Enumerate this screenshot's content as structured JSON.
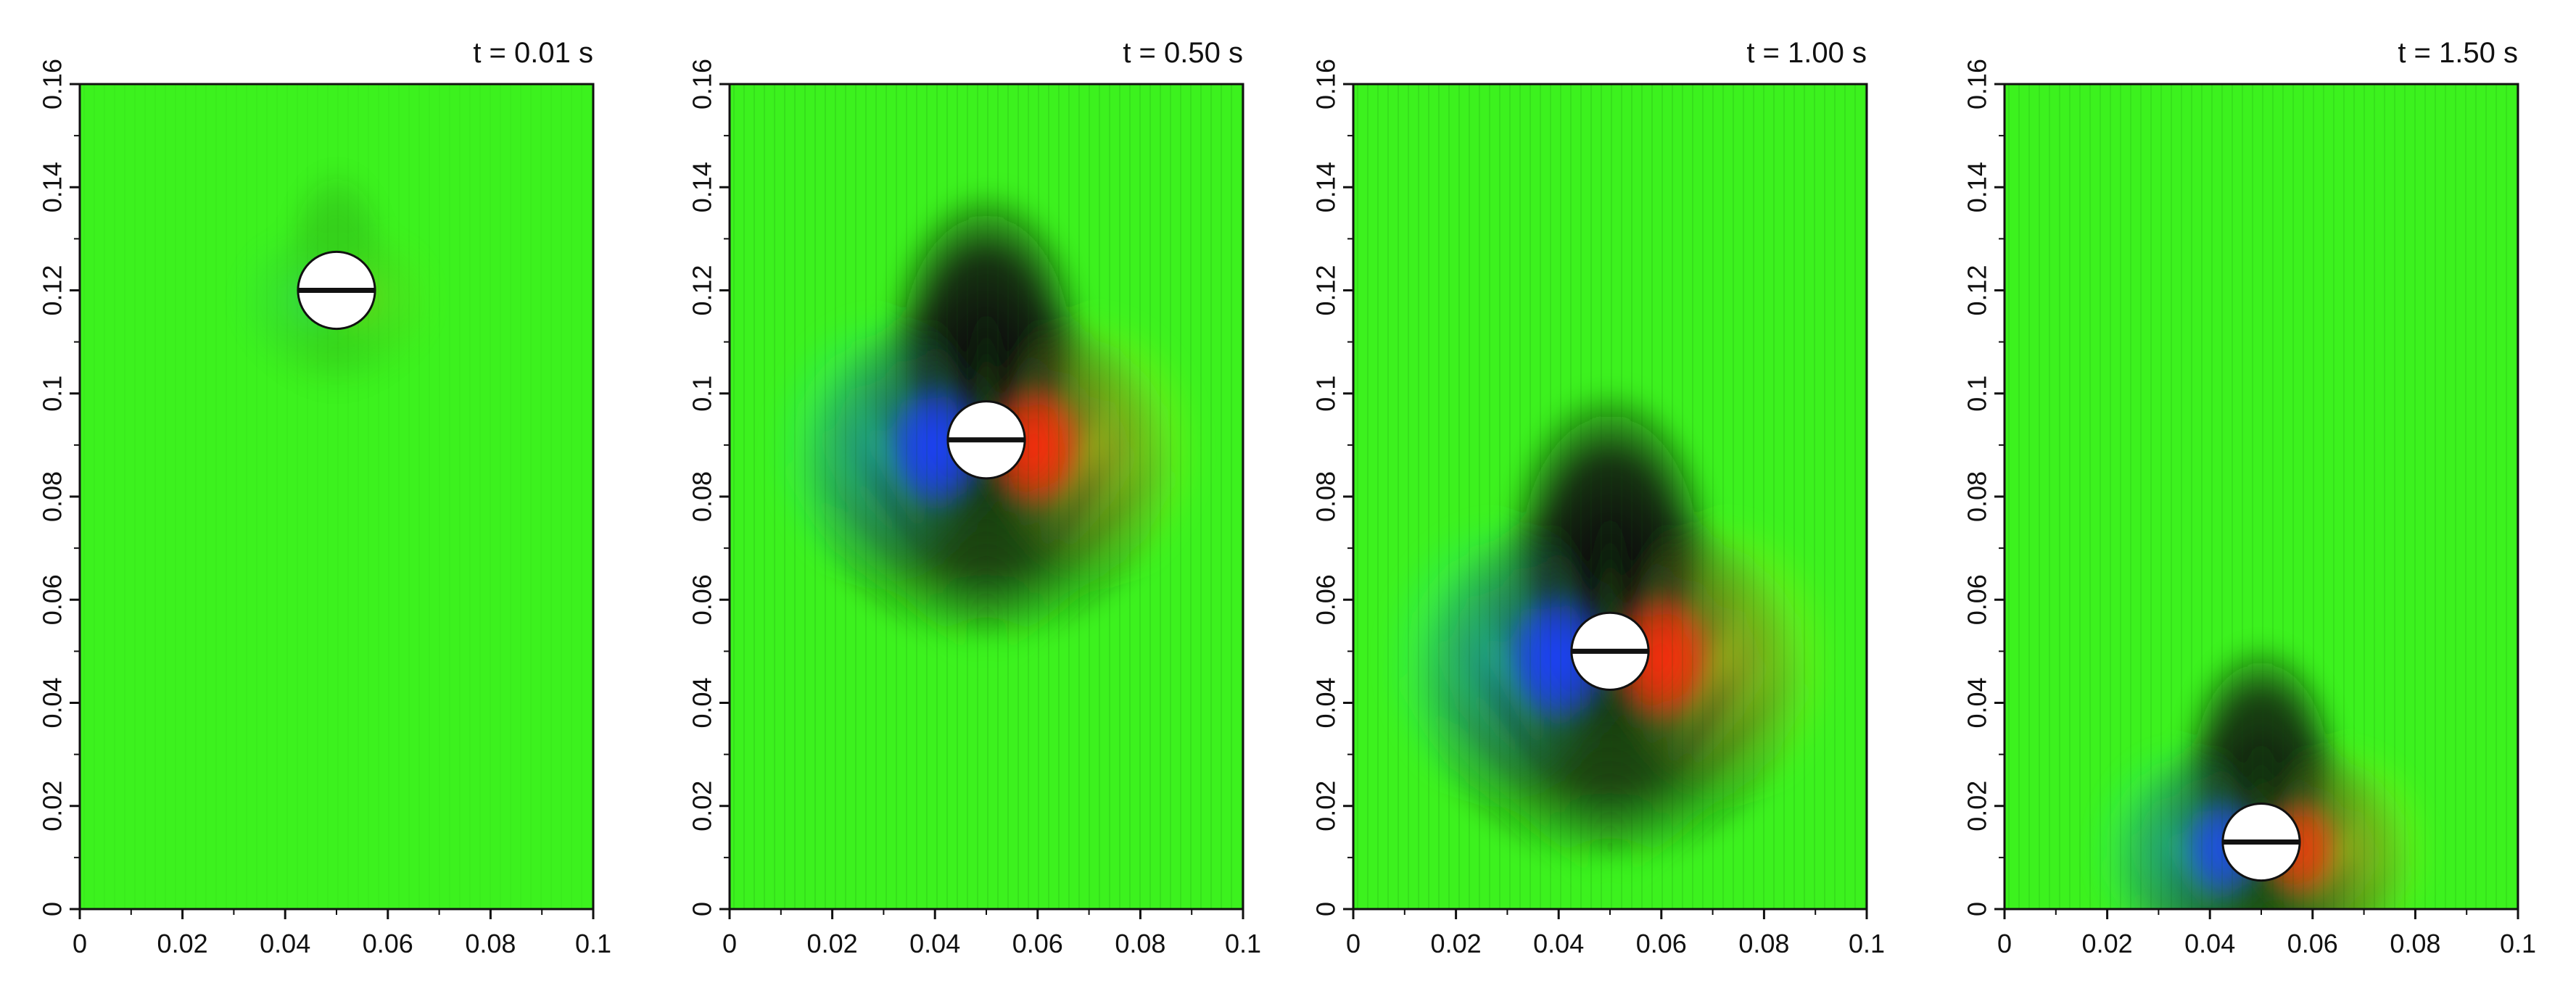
{
  "chart_data": [
    {
      "type": "heatmap",
      "title": "t = 0.01 s",
      "xlabel": "",
      "ylabel": "",
      "xlim": [
        0,
        0.1
      ],
      "ylim": [
        0,
        0.16
      ],
      "x_ticks": [
        "0",
        "0.02",
        "0.04",
        "0.06",
        "0.08",
        "0.1"
      ],
      "y_ticks": [
        "0",
        "0.02",
        "0.04",
        "0.06",
        "0.08",
        "0.1",
        "0.12",
        "0.14",
        "0.16"
      ],
      "sphere": {
        "x": 0.05,
        "y": 0.12,
        "r": 0.0075
      },
      "field_intensity": 0.15,
      "wake_spread": 0.5
    },
    {
      "type": "heatmap",
      "title": "t = 0.50 s",
      "xlabel": "",
      "ylabel": "",
      "xlim": [
        0,
        0.1
      ],
      "ylim": [
        0,
        0.16
      ],
      "x_ticks": [
        "0",
        "0.02",
        "0.04",
        "0.06",
        "0.08",
        "0.1"
      ],
      "y_ticks": [
        "0",
        "0.02",
        "0.04",
        "0.06",
        "0.08",
        "0.1",
        "0.12",
        "0.14",
        "0.16"
      ],
      "sphere": {
        "x": 0.05,
        "y": 0.091,
        "r": 0.0075
      },
      "field_intensity": 1.0,
      "wake_spread": 1.0
    },
    {
      "type": "heatmap",
      "title": "t = 1.00 s",
      "xlabel": "",
      "ylabel": "",
      "xlim": [
        0,
        0.1
      ],
      "ylim": [
        0,
        0.16
      ],
      "x_ticks": [
        "0",
        "0.02",
        "0.04",
        "0.06",
        "0.08",
        "0.1"
      ],
      "y_ticks": [
        "0",
        "0.02",
        "0.04",
        "0.06",
        "0.08",
        "0.1",
        "0.12",
        "0.14",
        "0.16"
      ],
      "sphere": {
        "x": 0.05,
        "y": 0.05,
        "r": 0.0075
      },
      "field_intensity": 1.0,
      "wake_spread": 1.05
    },
    {
      "type": "heatmap",
      "title": "t = 1.50 s",
      "xlabel": "",
      "ylabel": "",
      "xlim": [
        0,
        0.1
      ],
      "ylim": [
        0,
        0.16
      ],
      "x_ticks": [
        "0",
        "0.02",
        "0.04",
        "0.06",
        "0.08",
        "0.1"
      ],
      "y_ticks": [
        "0",
        "0.02",
        "0.04",
        "0.06",
        "0.08",
        "0.1",
        "0.12",
        "0.14",
        "0.16"
      ],
      "sphere": {
        "x": 0.05,
        "y": 0.013,
        "r": 0.0075
      },
      "field_intensity": 0.9,
      "wake_spread": 0.8
    }
  ],
  "colors": {
    "background": "#3cf21e",
    "core": "#111111",
    "left_lobe": "#1f3cff",
    "left_outer": "#22d6e6",
    "right_lobe": "#ff2a10",
    "right_outer": "#f5e51c",
    "sphere_fill": "#ffffff",
    "sphere_stroke": "#111111"
  }
}
